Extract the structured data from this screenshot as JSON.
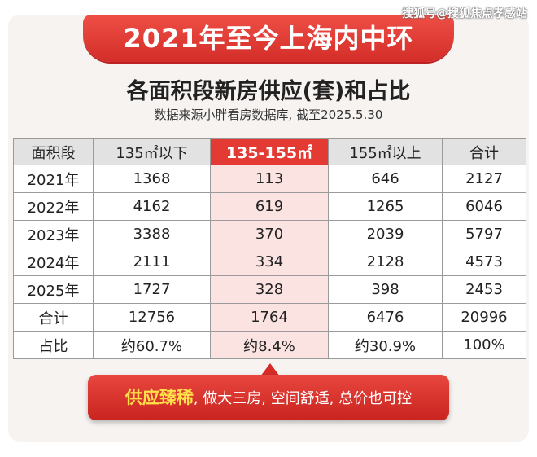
{
  "watermark": "搜狐号@搜狐焦点孝感站",
  "title": "2021年至今上海内中环",
  "subtitle": "各面积段新房供应(套)和占比",
  "source": "数据来源小胖看房数据库, 截至2025.5.30",
  "table": {
    "headers": [
      "面积段",
      "135㎡以下",
      "135-155㎡",
      "155㎡以上",
      "合计"
    ],
    "rows": [
      [
        "2021年",
        "1368",
        "113",
        "646",
        "2127"
      ],
      [
        "2022年",
        "4162",
        "619",
        "1265",
        "6046"
      ],
      [
        "2023年",
        "3388",
        "370",
        "2039",
        "5797"
      ],
      [
        "2024年",
        "2111",
        "334",
        "2128",
        "4573"
      ],
      [
        "2025年",
        "1727",
        "328",
        "398",
        "2453"
      ],
      [
        "合计",
        "12756",
        "1764",
        "6476",
        "20996"
      ],
      [
        "占比",
        "约60.7%",
        "约8.4%",
        "约30.9%",
        "100%"
      ]
    ]
  },
  "callout": {
    "highlight": "供应臻稀",
    "rest": ", 做大三房, 空间舒适, 总价也可控"
  },
  "colors": {
    "accent_red": "#e33a33",
    "highlight_cell": "#fbe3e1",
    "callout_yellow": "#ffe14a"
  }
}
